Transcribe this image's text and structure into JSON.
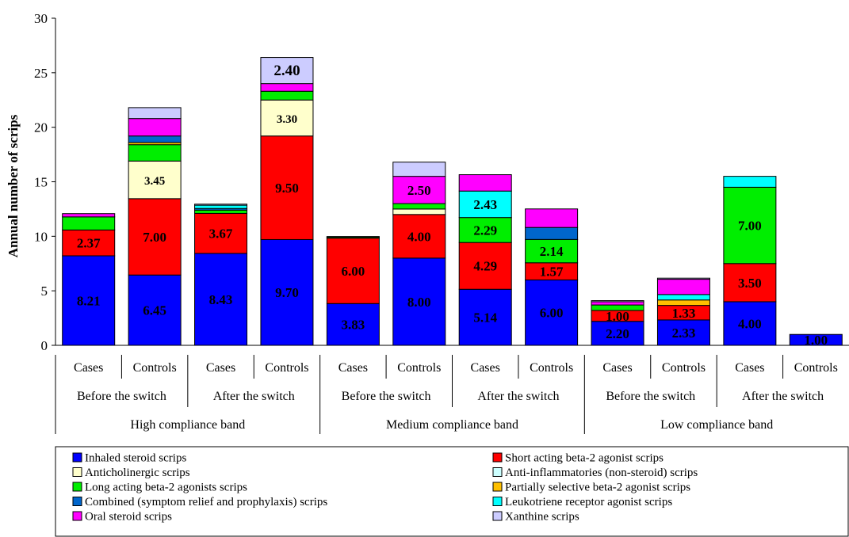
{
  "chart_data": {
    "type": "bar",
    "stacked": true,
    "title": "",
    "ylabel": "Annual number of scrips",
    "ylim": [
      0,
      30
    ],
    "yticks": [
      0,
      5,
      10,
      15,
      20,
      25,
      30
    ],
    "grid": false,
    "legend_position": "bottom",
    "categories": [
      "Cases",
      "Controls",
      "Cases",
      "Controls",
      "Cases",
      "Controls",
      "Cases",
      "Controls",
      "Cases",
      "Controls",
      "Cases",
      "Controls"
    ],
    "period_labels": [
      "Before the switch",
      "After the switch",
      "Before the switch",
      "After the switch",
      "Before the switch",
      "After the switch"
    ],
    "band_labels": [
      "High compliance band",
      "Medium compliance band",
      "Low compliance band"
    ],
    "series": [
      {
        "name": "Inhaled steroid scrips",
        "color": "#0000ff",
        "values": [
          8.21,
          6.45,
          8.43,
          9.7,
          3.83,
          8.0,
          5.14,
          6.0,
          2.2,
          2.33,
          4.0,
          1.0
        ]
      },
      {
        "name": "Short acting beta-2 agonist scrips",
        "color": "#ff0000",
        "values": [
          2.37,
          7.0,
          3.67,
          9.5,
          6.0,
          4.0,
          4.29,
          1.57,
          1.0,
          1.33,
          3.5,
          0
        ]
      },
      {
        "name": "Anticholinergic scrips",
        "color": "#ffffcc",
        "values": [
          0,
          3.45,
          0,
          3.3,
          0,
          0.5,
          0,
          0,
          0,
          0,
          0,
          0
        ]
      },
      {
        "name": "Anti-inflammatories (non-steroid) scrips",
        "color": "#ccffff",
        "values": [
          0,
          0,
          0,
          0,
          0,
          0,
          0,
          0,
          0,
          0,
          0,
          0
        ]
      },
      {
        "name": "Long acting beta-2 agonists scrips",
        "color": "#00ee00",
        "values": [
          1.2,
          1.5,
          0.3,
          0.8,
          0.1,
          0.5,
          2.29,
          2.14,
          0.5,
          0,
          7.0,
          0
        ]
      },
      {
        "name": "Partially selective beta-2 agonist scrips",
        "color": "#ffc000",
        "values": [
          0,
          0.2,
          0,
          0,
          0.05,
          0,
          0,
          0,
          0,
          0.5,
          0,
          0
        ]
      },
      {
        "name": "Combined (symptom relief and prophylaxis) scrips",
        "color": "#0066cc",
        "values": [
          0,
          0.6,
          0.15,
          0,
          0,
          0,
          0,
          1.1,
          0,
          0,
          0,
          0
        ]
      },
      {
        "name": "Leukotriene receptor agonist scrips",
        "color": "#00ffff",
        "values": [
          0,
          0,
          0.3,
          0,
          0,
          0,
          2.43,
          0,
          0,
          0.5,
          1.0,
          0
        ]
      },
      {
        "name": "Oral steroid scrips",
        "color": "#ff00ff",
        "values": [
          0.3,
          1.6,
          0,
          0.7,
          0,
          2.5,
          1.5,
          1.7,
          0.3,
          1.4,
          0,
          0
        ]
      },
      {
        "name": "Xanthine scrips",
        "color": "#ccccff",
        "values": [
          0,
          1.0,
          0.1,
          2.4,
          0,
          1.3,
          0,
          0,
          0.1,
          0.1,
          0,
          0
        ]
      }
    ],
    "annotations": [
      {
        "bar": 0,
        "series": 0,
        "text": "8.21"
      },
      {
        "bar": 0,
        "series": 1,
        "text": "2.37"
      },
      {
        "bar": 1,
        "series": 0,
        "text": "6.45"
      },
      {
        "bar": 1,
        "series": 1,
        "text": "7.00"
      },
      {
        "bar": 1,
        "series": 2,
        "text": "3.45"
      },
      {
        "bar": 2,
        "series": 0,
        "text": "8.43"
      },
      {
        "bar": 2,
        "series": 1,
        "text": "3.67"
      },
      {
        "bar": 3,
        "series": 0,
        "text": "9.70"
      },
      {
        "bar": 3,
        "series": 1,
        "text": "9.50"
      },
      {
        "bar": 3,
        "series": 2,
        "text": "3.30"
      },
      {
        "bar": 3,
        "series": 9,
        "text": "2.40"
      },
      {
        "bar": 4,
        "series": 0,
        "text": "3.83"
      },
      {
        "bar": 4,
        "series": 1,
        "text": "6.00"
      },
      {
        "bar": 5,
        "series": 0,
        "text": "8.00"
      },
      {
        "bar": 5,
        "series": 1,
        "text": "4.00"
      },
      {
        "bar": 5,
        "series": 8,
        "text": "2.50"
      },
      {
        "bar": 6,
        "series": 0,
        "text": "5.14"
      },
      {
        "bar": 6,
        "series": 1,
        "text": "4.29"
      },
      {
        "bar": 6,
        "series": 4,
        "text": "2.29"
      },
      {
        "bar": 6,
        "series": 7,
        "text": "2.43"
      },
      {
        "bar": 7,
        "series": 0,
        "text": "6.00"
      },
      {
        "bar": 7,
        "series": 1,
        "text": "1.57"
      },
      {
        "bar": 7,
        "series": 4,
        "text": "2.14"
      },
      {
        "bar": 8,
        "series": 0,
        "text": "2.20"
      },
      {
        "bar": 8,
        "series": 1,
        "text": "1.00"
      },
      {
        "bar": 9,
        "series": 0,
        "text": "2.33"
      },
      {
        "bar": 9,
        "series": 1,
        "text": "1.33"
      },
      {
        "bar": 10,
        "series": 0,
        "text": "4.00"
      },
      {
        "bar": 10,
        "series": 1,
        "text": "3.50"
      },
      {
        "bar": 10,
        "series": 4,
        "text": "7.00"
      },
      {
        "bar": 11,
        "series": 0,
        "text": "1.00"
      }
    ]
  }
}
